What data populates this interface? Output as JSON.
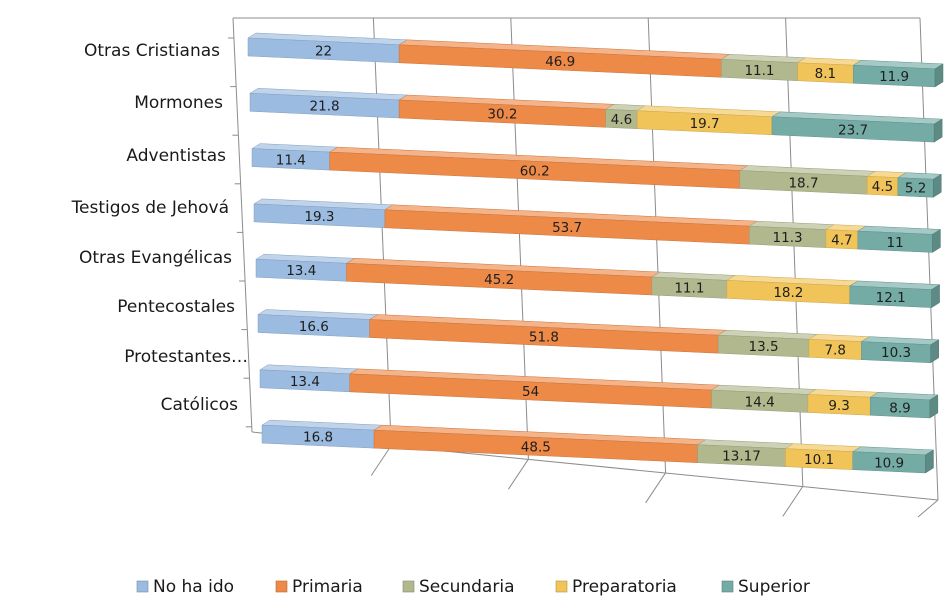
{
  "chart_data": {
    "type": "bar",
    "orientation": "horizontal",
    "stacked": true,
    "three_d": true,
    "title": "",
    "xlabel": "",
    "ylabel": "",
    "xlim": [
      0,
      100
    ],
    "grid": true,
    "legend_position": "bottom",
    "categories": [
      "Otras Cristianas",
      "Mormones",
      "Adventistas",
      "Testigos de Jehová",
      "Otras Evangélicas",
      "Pentecostales",
      "Protestantes…",
      "Católicos"
    ],
    "series": [
      {
        "name": "No ha ido",
        "color": "#9cbbe0",
        "values": [
          22,
          21.8,
          11.4,
          19.3,
          13.4,
          16.6,
          13.4,
          16.8
        ]
      },
      {
        "name": "Primaria",
        "color": "#ee8a48",
        "values": [
          46.9,
          30.2,
          60.2,
          53.7,
          45.2,
          51.8,
          54,
          48.5
        ]
      },
      {
        "name": "Secundaria",
        "color": "#b2b88e",
        "values": [
          11.1,
          4.6,
          18.7,
          11.3,
          11.1,
          13.5,
          14.4,
          13.17
        ]
      },
      {
        "name": "Preparatoria",
        "color": "#f1c45a",
        "values": [
          8.1,
          19.7,
          4.5,
          4.7,
          18.2,
          7.8,
          9.3,
          10.1
        ]
      },
      {
        "name": "Superior",
        "color": "#74aca5",
        "values": [
          11.9,
          23.7,
          5.2,
          11,
          12.1,
          10.3,
          8.9,
          10.9
        ]
      }
    ]
  }
}
